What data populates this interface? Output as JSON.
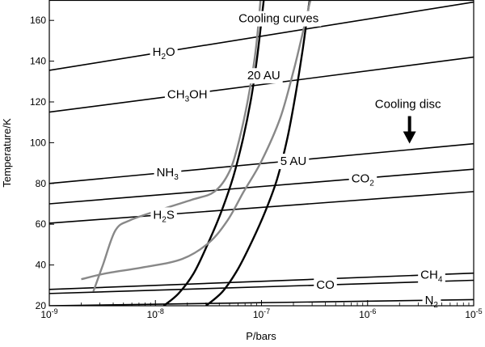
{
  "chart_data": {
    "type": "line",
    "xlabel": "P/bars",
    "ylabel": "Temperature/K",
    "xscale": "log",
    "xlim": [
      1e-09,
      1e-05
    ],
    "ylim": [
      20,
      170
    ],
    "grid": false,
    "x_ticks": [
      {
        "value": 1e-09,
        "base": "10",
        "exp": "-9"
      },
      {
        "value": 1e-08,
        "base": "10",
        "exp": "-8"
      },
      {
        "value": 1e-07,
        "base": "10",
        "exp": "-7"
      },
      {
        "value": 1e-06,
        "base": "10",
        "exp": "-6"
      },
      {
        "value": 1e-05,
        "base": "10",
        "exp": "-5"
      }
    ],
    "y_ticks": [
      20,
      40,
      60,
      80,
      100,
      120,
      140,
      160
    ],
    "condensation_lines": [
      {
        "name": "H2O",
        "parts": [
          "H",
          "2",
          "O"
        ],
        "subs": [
          false,
          true,
          false
        ],
        "color": "#000000",
        "points": [
          [
            1e-09,
            135.5
          ],
          [
            1e-05,
            169
          ]
        ],
        "label_at": 1.2e-08
      },
      {
        "name": "CH3OH",
        "parts": [
          "CH",
          "3",
          "OH"
        ],
        "subs": [
          false,
          true,
          false
        ],
        "color": "#000000",
        "points": [
          [
            1e-09,
            115
          ],
          [
            1e-05,
            142
          ]
        ],
        "label_at": 2e-08
      },
      {
        "name": "NH3",
        "parts": [
          "NH",
          "3"
        ],
        "subs": [
          false,
          true
        ],
        "color": "#000000",
        "points": [
          [
            1e-09,
            80
          ],
          [
            1e-05,
            99.5
          ]
        ],
        "label_at": 1.3e-08
      },
      {
        "name": "CO2",
        "parts": [
          "CO",
          "2"
        ],
        "subs": [
          false,
          true
        ],
        "color": "#000000",
        "points": [
          [
            1e-09,
            70
          ],
          [
            1e-05,
            87
          ]
        ],
        "label_at": 9e-07
      },
      {
        "name": "H2S",
        "parts": [
          "H",
          "2",
          "S"
        ],
        "subs": [
          false,
          true,
          false
        ],
        "color": "#000000",
        "points": [
          [
            1e-09,
            60.5
          ],
          [
            1e-05,
            76
          ]
        ],
        "label_at": 1.2e-08
      },
      {
        "name": "CH4",
        "parts": [
          "CH",
          "4"
        ],
        "subs": [
          false,
          true
        ],
        "color": "#000000",
        "points": [
          [
            1e-09,
            28
          ],
          [
            1e-05,
            36
          ]
        ],
        "label_at": 4e-06
      },
      {
        "name": "CO",
        "parts": [
          "CO"
        ],
        "subs": [
          false
        ],
        "color": "#000000",
        "points": [
          [
            1e-09,
            26
          ],
          [
            1e-05,
            32.5
          ]
        ],
        "label_at": 4e-07
      },
      {
        "name": "N2",
        "parts": [
          "N",
          "2"
        ],
        "subs": [
          false,
          true
        ],
        "color": "#000000",
        "points": [
          [
            1e-09,
            20
          ],
          [
            1e-05,
            23
          ]
        ],
        "label_at": 4e-06
      }
    ],
    "cooling_curves_title": "Cooling curves",
    "cooling_curves": [
      {
        "label": "20 AU",
        "color": "#000000",
        "points": [
          [
            1.2e-08,
            20
          ],
          [
            1.65e-08,
            26
          ],
          [
            2.3e-08,
            36
          ],
          [
            3.1e-08,
            50
          ],
          [
            4.1e-08,
            65
          ],
          [
            5.4e-08,
            83
          ],
          [
            6.7e-08,
            102
          ],
          [
            8e-08,
            122
          ],
          [
            9e-08,
            140
          ],
          [
            9.9e-08,
            158
          ],
          [
            1.05e-07,
            170
          ]
        ]
      },
      {
        "label": "5 AU",
        "color": "#000000",
        "points": [
          [
            3e-08,
            20
          ],
          [
            4.3e-08,
            27
          ],
          [
            6e-08,
            38
          ],
          [
            8.2e-08,
            52
          ],
          [
            1.08e-07,
            66
          ],
          [
            1.4e-07,
            82
          ],
          [
            1.75e-07,
            102
          ],
          [
            2.1e-07,
            124
          ],
          [
            2.45e-07,
            146
          ],
          [
            2.75e-07,
            165
          ],
          [
            2.85e-07,
            170
          ]
        ]
      },
      {
        "label": "20 AU",
        "color": "#888888",
        "points": [
          [
            2.6e-09,
            27
          ],
          [
            3.2e-09,
            40
          ],
          [
            4.2e-09,
            57
          ],
          [
            5.8e-09,
            62
          ],
          [
            1.1e-08,
            67
          ],
          [
            2.2e-08,
            72
          ],
          [
            3.6e-08,
            76
          ],
          [
            5e-08,
            86
          ],
          [
            6.2e-08,
            102
          ],
          [
            7.5e-08,
            122
          ],
          [
            8.8e-08,
            145
          ],
          [
            9.8e-08,
            170
          ]
        ]
      },
      {
        "label": "5 AU",
        "color": "#888888",
        "points": [
          [
            2e-09,
            33
          ],
          [
            3.5e-09,
            36
          ],
          [
            8e-09,
            39
          ],
          [
            1.8e-08,
            43
          ],
          [
            3.2e-08,
            51
          ],
          [
            4.8e-08,
            62
          ],
          [
            6.8e-08,
            76
          ],
          [
            1e-07,
            91
          ],
          [
            1.5e-07,
            112
          ],
          [
            2e-07,
            135
          ],
          [
            2.4e-07,
            152
          ],
          [
            2.8e-07,
            167
          ],
          [
            2.9e-07,
            170
          ]
        ]
      }
    ],
    "cooling_curve_labels": [
      {
        "text": "20 AU",
        "x": 1.05e-07,
        "y": 133
      },
      {
        "text": "5 AU",
        "x": 2e-07,
        "y": 91
      }
    ],
    "annotation": {
      "text": "Cooling disc",
      "arrow_direction": "down",
      "x": 2.4e-06,
      "y": 117
    },
    "legend": "none"
  }
}
